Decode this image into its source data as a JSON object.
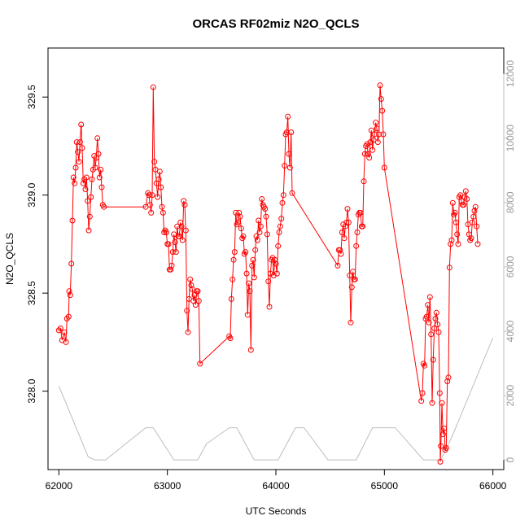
{
  "chart_data": {
    "type": "line",
    "title": "ORCAS RF02miz N2O_QCLS",
    "xlabel": "UTC Seconds",
    "ylabel": "N2O_QCLS",
    "xlim": [
      61900,
      66100
    ],
    "ylim": [
      327.6,
      329.75
    ],
    "y2lim": [
      -300,
      12800
    ],
    "x_ticks": [
      62000,
      63000,
      64000,
      65000,
      66000
    ],
    "y_ticks": [
      328.0,
      328.5,
      329.0,
      329.5
    ],
    "y2_ticks": [
      0,
      2000,
      4000,
      6000,
      8000,
      10000,
      12000
    ],
    "colors": {
      "series": "#ff0000",
      "altitude": "#bebebe"
    },
    "grid": false,
    "legend": "none",
    "series": [
      {
        "values": [
          [
            62000,
            328.31
          ],
          [
            62015,
            328.32
          ],
          [
            62030,
            328.26
          ],
          [
            62050,
            328.3
          ],
          [
            62065,
            328.25
          ],
          [
            62075,
            328.37
          ],
          [
            62090,
            328.38
          ],
          [
            62095,
            328.51
          ],
          [
            62105,
            328.49
          ],
          [
            62115,
            328.65
          ],
          [
            62125,
            328.87
          ],
          [
            62135,
            329.09
          ],
          [
            62145,
            329.06
          ],
          [
            62155,
            329.14
          ],
          [
            62165,
            329.27
          ],
          [
            62175,
            329.22
          ],
          [
            62185,
            329.17
          ],
          [
            62195,
            329.27
          ],
          [
            62205,
            329.36
          ],
          [
            62215,
            329.24
          ],
          [
            62225,
            329.06
          ],
          [
            62235,
            329.08
          ],
          [
            62245,
            329.03
          ],
          [
            62255,
            329.09
          ],
          [
            62265,
            328.97
          ],
          [
            62275,
            328.82
          ],
          [
            62285,
            328.89
          ],
          [
            62295,
            328.99
          ],
          [
            62305,
            329.08
          ],
          [
            62315,
            329.13
          ],
          [
            62325,
            329.2
          ],
          [
            62335,
            329.14
          ],
          [
            62345,
            329.19
          ],
          [
            62355,
            329.29
          ],
          [
            62365,
            329.21
          ],
          [
            62375,
            329.09
          ],
          [
            62385,
            329.13
          ],
          [
            62395,
            329.04
          ],
          [
            62405,
            328.95
          ],
          [
            62415,
            328.94
          ],
          [
            62800,
            328.94
          ],
          [
            62820,
            329.01
          ],
          [
            62830,
            329.0
          ],
          [
            62840,
            328.95
          ],
          [
            62850,
            328.91
          ],
          [
            62860,
            329.0
          ],
          [
            62870,
            329.55
          ],
          [
            62880,
            329.17
          ],
          [
            62890,
            329.13
          ],
          [
            62900,
            329.06
          ],
          [
            62910,
            328.99
          ],
          [
            62920,
            329.08
          ],
          [
            62930,
            329.12
          ],
          [
            62940,
            329.04
          ],
          [
            62950,
            328.94
          ],
          [
            62960,
            328.91
          ],
          [
            62970,
            328.81
          ],
          [
            62980,
            328.82
          ],
          [
            62990,
            328.81
          ],
          [
            63000,
            328.75
          ],
          [
            63010,
            328.75
          ],
          [
            63020,
            328.62
          ],
          [
            63030,
            328.62
          ],
          [
            63040,
            328.64
          ],
          [
            63050,
            328.71
          ],
          [
            63060,
            328.8
          ],
          [
            63070,
            328.76
          ],
          [
            63080,
            328.71
          ],
          [
            63090,
            328.84
          ],
          [
            63100,
            328.79
          ],
          [
            63110,
            328.79
          ],
          [
            63120,
            328.86
          ],
          [
            63130,
            328.84
          ],
          [
            63140,
            328.77
          ],
          [
            63150,
            328.97
          ],
          [
            63160,
            328.95
          ],
          [
            63170,
            328.82
          ],
          [
            63180,
            328.41
          ],
          [
            63190,
            328.3
          ],
          [
            63200,
            328.47
          ],
          [
            63210,
            328.57
          ],
          [
            63220,
            328.54
          ],
          [
            63230,
            328.52
          ],
          [
            63240,
            328.46
          ],
          [
            63250,
            328.49
          ],
          [
            63260,
            328.44
          ],
          [
            63270,
            328.51
          ],
          [
            63280,
            328.51
          ],
          [
            63290,
            328.46
          ],
          [
            63300,
            328.14
          ],
          [
            63570,
            328.28
          ],
          [
            63580,
            328.27
          ],
          [
            63590,
            328.47
          ],
          [
            63600,
            328.57
          ],
          [
            63610,
            328.67
          ],
          [
            63620,
            328.71
          ],
          [
            63630,
            328.91
          ],
          [
            63640,
            328.85
          ],
          [
            63650,
            328.86
          ],
          [
            63660,
            328.91
          ],
          [
            63670,
            328.89
          ],
          [
            63680,
            328.83
          ],
          [
            63690,
            328.78
          ],
          [
            63700,
            328.79
          ],
          [
            63710,
            328.7
          ],
          [
            63720,
            328.71
          ],
          [
            63730,
            328.6
          ],
          [
            63740,
            328.39
          ],
          [
            63750,
            328.55
          ],
          [
            63760,
            328.51
          ],
          [
            63770,
            328.21
          ],
          [
            63780,
            328.64
          ],
          [
            63790,
            328.67
          ],
          [
            63800,
            328.58
          ],
          [
            63810,
            328.72
          ],
          [
            63820,
            328.79
          ],
          [
            63830,
            328.77
          ],
          [
            63840,
            328.87
          ],
          [
            63850,
            328.81
          ],
          [
            63860,
            328.84
          ],
          [
            63870,
            328.98
          ],
          [
            63880,
            328.95
          ],
          [
            63890,
            328.94
          ],
          [
            63900,
            328.93
          ],
          [
            63910,
            328.89
          ],
          [
            63920,
            328.8
          ],
          [
            63930,
            328.56
          ],
          [
            63940,
            328.43
          ],
          [
            63950,
            328.6
          ],
          [
            63960,
            328.67
          ],
          [
            63970,
            328.68
          ],
          [
            63980,
            328.59
          ],
          [
            63990,
            328.67
          ],
          [
            64000,
            328.65
          ],
          [
            64010,
            328.6
          ],
          [
            64020,
            328.74
          ],
          [
            64030,
            328.81
          ],
          [
            64040,
            328.84
          ],
          [
            64050,
            328.88
          ],
          [
            64060,
            328.96
          ],
          [
            64070,
            329.0
          ],
          [
            64080,
            329.15
          ],
          [
            64090,
            329.31
          ],
          [
            64100,
            329.32
          ],
          [
            64110,
            329.4
          ],
          [
            64120,
            329.21
          ],
          [
            64130,
            329.14
          ],
          [
            64140,
            329.32
          ],
          [
            64150,
            329.01
          ],
          [
            64570,
            328.64
          ],
          [
            64580,
            328.72
          ],
          [
            64590,
            328.72
          ],
          [
            64600,
            328.7
          ],
          [
            64610,
            328.81
          ],
          [
            64620,
            328.85
          ],
          [
            64630,
            328.78
          ],
          [
            64640,
            328.84
          ],
          [
            64650,
            328.86
          ],
          [
            64660,
            328.93
          ],
          [
            64670,
            328.86
          ],
          [
            64680,
            328.59
          ],
          [
            64690,
            328.35
          ],
          [
            64700,
            328.53
          ],
          [
            64710,
            328.61
          ],
          [
            64720,
            328.57
          ],
          [
            64730,
            328.57
          ],
          [
            64740,
            328.74
          ],
          [
            64750,
            328.81
          ],
          [
            64760,
            328.9
          ],
          [
            64770,
            328.91
          ],
          [
            64780,
            328.91
          ],
          [
            64790,
            328.84
          ],
          [
            64800,
            328.84
          ],
          [
            64810,
            329.07
          ],
          [
            64820,
            329.21
          ],
          [
            64830,
            329.25
          ],
          [
            64840,
            329.26
          ],
          [
            64850,
            329.21
          ],
          [
            64860,
            329.19
          ],
          [
            64870,
            329.27
          ],
          [
            64880,
            329.33
          ],
          [
            64890,
            329.23
          ],
          [
            64900,
            329.28
          ],
          [
            64910,
            329.31
          ],
          [
            64920,
            329.37
          ],
          [
            64930,
            329.34
          ],
          [
            64940,
            329.27
          ],
          [
            64950,
            329.31
          ],
          [
            64960,
            329.56
          ],
          [
            64970,
            329.49
          ],
          [
            64980,
            329.43
          ],
          [
            64990,
            329.31
          ],
          [
            65000,
            329.14
          ],
          [
            65340,
            327.95
          ],
          [
            65350,
            327.99
          ],
          [
            65360,
            328.14
          ],
          [
            65370,
            328.13
          ],
          [
            65380,
            328.37
          ],
          [
            65390,
            328.38
          ],
          [
            65400,
            328.44
          ],
          [
            65410,
            328.35
          ],
          [
            65420,
            328.48
          ],
          [
            65430,
            328.29
          ],
          [
            65440,
            327.94
          ],
          [
            65450,
            328.16
          ],
          [
            65460,
            328.32
          ],
          [
            65470,
            328.37
          ],
          [
            65480,
            328.4
          ],
          [
            65490,
            328.34
          ],
          [
            65500,
            328.3
          ],
          [
            65510,
            327.99
          ],
          [
            65515,
            327.64
          ],
          [
            65520,
            327.72
          ],
          [
            65530,
            327.94
          ],
          [
            65540,
            327.78
          ],
          [
            65550,
            327.81
          ],
          [
            65560,
            327.7
          ],
          [
            65570,
            327.71
          ],
          [
            65580,
            328.05
          ],
          [
            65590,
            328.07
          ],
          [
            65600,
            328.63
          ],
          [
            65610,
            328.75
          ],
          [
            65620,
            328.77
          ],
          [
            65630,
            328.96
          ],
          [
            65640,
            328.9
          ],
          [
            65650,
            328.91
          ],
          [
            65660,
            328.86
          ],
          [
            65670,
            328.8
          ],
          [
            65680,
            328.75
          ],
          [
            65690,
            328.99
          ],
          [
            65700,
            329.0
          ],
          [
            65710,
            328.97
          ],
          [
            65720,
            328.95
          ],
          [
            65730,
            328.95
          ],
          [
            65740,
            328.99
          ],
          [
            65750,
            329.02
          ],
          [
            65760,
            328.98
          ],
          [
            65770,
            328.85
          ],
          [
            65780,
            328.8
          ],
          [
            65790,
            328.77
          ],
          [
            65800,
            328.78
          ],
          [
            65810,
            328.86
          ],
          [
            65820,
            328.89
          ],
          [
            65830,
            328.92
          ],
          [
            65840,
            328.94
          ],
          [
            65850,
            328.84
          ],
          [
            65860,
            328.75
          ]
        ]
      },
      {
        "axis": "right",
        "values": [
          [
            62000,
            2300
          ],
          [
            62270,
            100
          ],
          [
            62330,
            0
          ],
          [
            62430,
            0
          ],
          [
            62800,
            1000
          ],
          [
            62870,
            1000
          ],
          [
            63060,
            0
          ],
          [
            63280,
            0
          ],
          [
            63360,
            500
          ],
          [
            63570,
            1000
          ],
          [
            63640,
            1000
          ],
          [
            63800,
            0
          ],
          [
            64020,
            0
          ],
          [
            64180,
            1000
          ],
          [
            64260,
            1000
          ],
          [
            64480,
            0
          ],
          [
            64740,
            0
          ],
          [
            64890,
            1000
          ],
          [
            65100,
            1000
          ],
          [
            65360,
            0
          ],
          [
            65520,
            0
          ],
          [
            65620,
            700
          ],
          [
            66000,
            3800
          ]
        ]
      }
    ]
  }
}
